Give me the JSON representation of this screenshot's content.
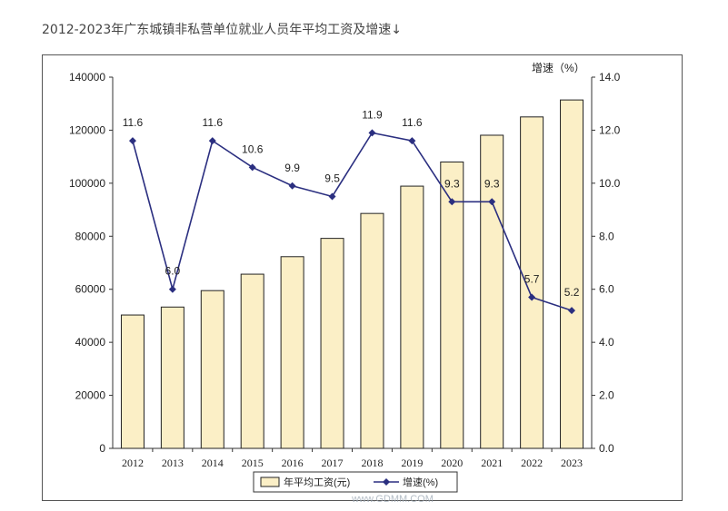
{
  "heading": "2012-2023年广东城镇非私营单位就业人员年平均工资及增速↓",
  "chart_data": {
    "type": "bar+line",
    "categories": [
      "2012",
      "2013",
      "2014",
      "2015",
      "2016",
      "2017",
      "2018",
      "2019",
      "2020",
      "2021",
      "2022",
      "2023"
    ],
    "series": [
      {
        "name": "年平均工资(元)",
        "type": "bar",
        "axis": "left",
        "values": [
          50300,
          53300,
          59500,
          65700,
          72300,
          79200,
          88600,
          98900,
          108000,
          118100,
          125000,
          131400
        ],
        "color": "#FBEFC6",
        "stroke": "#222222"
      },
      {
        "name": "增速(%)",
        "type": "line",
        "axis": "right",
        "values": [
          11.6,
          6.0,
          11.6,
          10.6,
          9.9,
          9.5,
          11.9,
          11.6,
          9.3,
          9.3,
          5.7,
          5.2
        ],
        "labels": [
          "11.6",
          "6.0",
          "11.6",
          "10.6",
          "9.9",
          "9.5",
          "11.9",
          "11.6",
          "9.3",
          "9.3",
          "5.7",
          "5.2"
        ],
        "color": "#2B2F80"
      }
    ],
    "y_left": {
      "lim": [
        0,
        140000
      ],
      "ticks": [
        "0",
        "20000",
        "40000",
        "60000",
        "80000",
        "100000",
        "120000",
        "140000"
      ]
    },
    "y_right": {
      "label": "增速（%）",
      "lim": [
        0,
        14
      ],
      "ticks": [
        "0.0",
        "2.0",
        "4.0",
        "6.0",
        "8.0",
        "10.0",
        "12.0",
        "14.0"
      ]
    },
    "legend_position": "bottom",
    "grid": false
  },
  "watermark": "www.GDMM.COM"
}
